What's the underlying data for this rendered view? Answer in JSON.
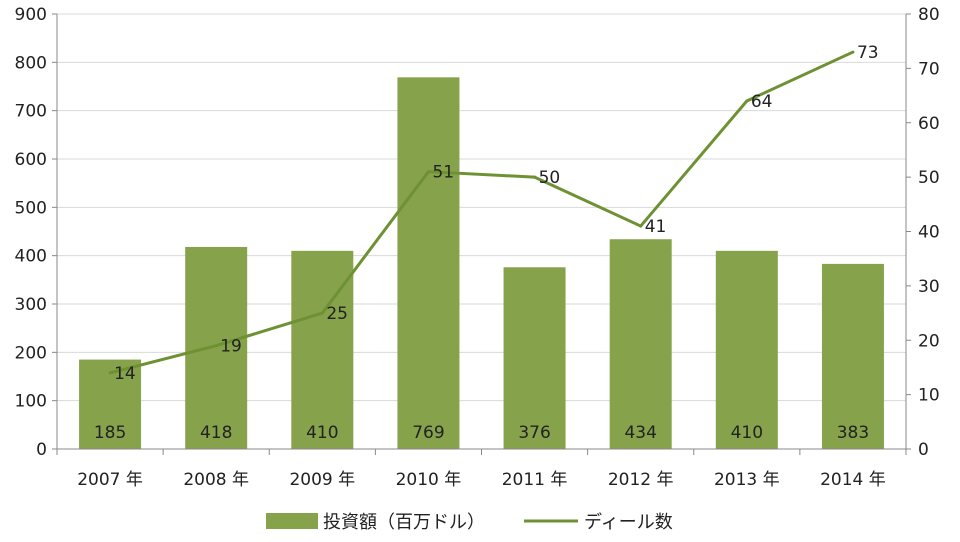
{
  "chart_data": {
    "type": "bar",
    "categories": [
      "2007 年",
      "2008 年",
      "2009 年",
      "2010 年",
      "2011 年",
      "2012 年",
      "2013 年",
      "2014 年"
    ],
    "series": [
      {
        "name": "投資額（百万ドル）",
        "type": "bar",
        "axis": "left",
        "values": [
          185,
          418,
          410,
          769,
          376,
          434,
          410,
          383
        ],
        "color": "#86A34C"
      },
      {
        "name": "ディール数",
        "type": "line",
        "axis": "right",
        "values": [
          14,
          19,
          25,
          51,
          50,
          41,
          64,
          73
        ],
        "color": "#6E9133"
      }
    ],
    "y_left": {
      "ylim": [
        0,
        900
      ],
      "ticks": [
        0,
        100,
        200,
        300,
        400,
        500,
        600,
        700,
        800,
        900
      ]
    },
    "y_right": {
      "ylim": [
        0,
        80
      ],
      "ticks": [
        0,
        10,
        20,
        30,
        40,
        50,
        60,
        70,
        80
      ]
    },
    "grid": "horizontal",
    "legend_position": "bottom"
  }
}
